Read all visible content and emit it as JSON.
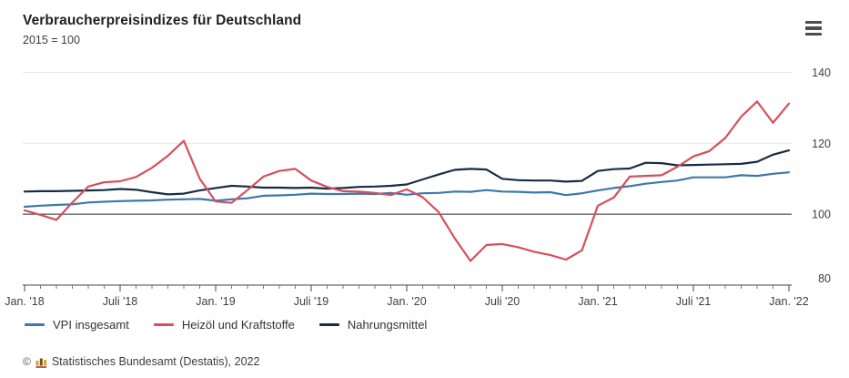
{
  "header": {
    "title": "Verbraucherpreisindizes für Deutschland",
    "subtitle": "2015 = 100",
    "menu_icon": "hamburger-menu-icon"
  },
  "footer": {
    "copyright_symbol": "©",
    "logo_icon": "destatis-logo-icon",
    "source_text": "Statistisches Bundesamt (Destatis), 2022"
  },
  "colors": {
    "vpi_blue": "#3C78A9",
    "heizoel_red": "#D5505A",
    "nahrung_navy": "#182C44",
    "gridline_light": "#e8e8e8",
    "baseline_dark": "#2a2a2a",
    "axis": "#444444",
    "tick_minor": "#777777",
    "tick_label": "#404040",
    "text": "#333333"
  },
  "chart_data": {
    "type": "line",
    "title": "Verbraucherpreisindizes für Deutschland",
    "subtitle": "2015 = 100",
    "x_range": [
      "Jan. 2018",
      "Jan. 2022"
    ],
    "x_interval": "monthly",
    "points_per_series": 49,
    "x_tick_labels": [
      "Jan. '18",
      "Juli '18",
      "Jan. '19",
      "Juli '19",
      "Jan. '20",
      "Juli '20",
      "Jan. '21",
      "Juli '21",
      "Jan. '22"
    ],
    "x_tick_every": 6,
    "ylim": [
      80,
      140
    ],
    "y_ticks": [
      80,
      100,
      120,
      140
    ],
    "y_axis_side": "right",
    "baseline_value": 100,
    "grid": "horizontal",
    "legend_position": "bottom",
    "series": [
      {
        "name": "VPI insgesamt",
        "color": "#3C78A9",
        "values": [
          102.1,
          102.4,
          102.6,
          102.8,
          103.3,
          103.5,
          103.7,
          103.8,
          103.9,
          104.1,
          104.2,
          104.3,
          103.8,
          104.2,
          104.5,
          105.2,
          105.3,
          105.5,
          105.8,
          105.7,
          105.7,
          105.8,
          105.7,
          106.0,
          105.5,
          105.9,
          106.0,
          106.4,
          106.3,
          106.8,
          106.4,
          106.3,
          106.1,
          106.2,
          105.4,
          105.9,
          106.7,
          107.4,
          107.9,
          108.6,
          109.1,
          109.5,
          110.4,
          110.4,
          110.4,
          111.0,
          110.8,
          111.4,
          111.8
        ]
      },
      {
        "name": "Heizöl und Kraftstoffe",
        "color": "#D5505A",
        "values": [
          101.1,
          99.8,
          98.4,
          103.3,
          107.8,
          109.0,
          109.3,
          110.5,
          113.1,
          116.5,
          120.7,
          110.0,
          103.6,
          103.2,
          106.8,
          110.6,
          112.2,
          112.8,
          109.5,
          107.7,
          106.5,
          106.4,
          106.0,
          105.4,
          107.0,
          104.8,
          100.6,
          93.3,
          86.8,
          91.3,
          91.6,
          90.7,
          89.4,
          88.5,
          87.2,
          89.8,
          102.4,
          104.7,
          110.6,
          110.8,
          111.0,
          113.4,
          116.3,
          117.8,
          121.5,
          127.5,
          131.8,
          125.8,
          131.2
        ]
      },
      {
        "name": "Nahrungsmittel",
        "color": "#182C44",
        "values": [
          106.4,
          106.5,
          106.5,
          106.6,
          106.7,
          106.8,
          107.1,
          106.9,
          106.2,
          105.6,
          105.8,
          106.7,
          107.4,
          108.0,
          107.8,
          107.5,
          107.5,
          107.4,
          107.5,
          107.2,
          107.4,
          107.7,
          107.8,
          108.0,
          108.4,
          109.8,
          111.2,
          112.5,
          112.8,
          112.6,
          110.0,
          109.6,
          109.5,
          109.5,
          109.2,
          109.4,
          112.2,
          112.7,
          112.9,
          114.5,
          114.4,
          113.8,
          113.9,
          114.0,
          114.1,
          114.2,
          114.8,
          116.8,
          118.0
        ]
      }
    ]
  }
}
